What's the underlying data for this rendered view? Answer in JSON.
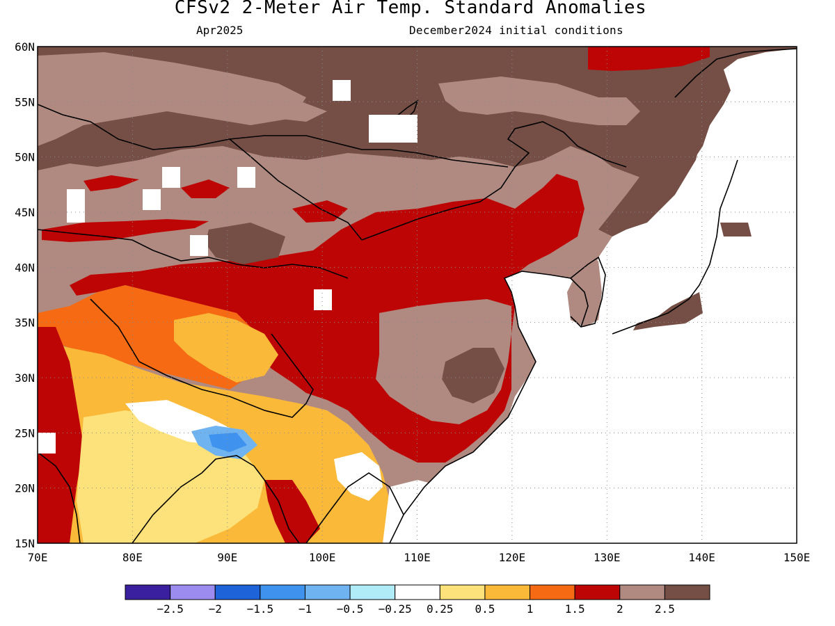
{
  "title": "CFSv2 2-Meter Air Temp. Standard Anomalies",
  "target_month": "Apr2025",
  "initial_conditions": "December2024 initial conditions",
  "map": {
    "lat_ticks": [
      "15N",
      "20N",
      "25N",
      "30N",
      "35N",
      "40N",
      "45N",
      "50N",
      "55N",
      "60N"
    ],
    "lon_ticks": [
      "70E",
      "80E",
      "90E",
      "100E",
      "110E",
      "120E",
      "130E",
      "140E",
      "150E"
    ],
    "lat_range": [
      15,
      60
    ],
    "lon_range": [
      70,
      150
    ],
    "grid": "dotted"
  },
  "legend": {
    "colors": [
      "#3a1f9e",
      "#9d8cf0",
      "#1f63d8",
      "#3f93ee",
      "#6fb4f0",
      "#b0ecf8",
      "#ffffff",
      "#fde17a",
      "#fbb93a",
      "#f56a12",
      "#bd0505",
      "#b08a80",
      "#754f45"
    ],
    "labels": [
      "-2.5",
      "-2",
      "-1.5",
      "-1",
      "-0.5",
      "-0.25",
      "0.25",
      "0.5",
      "1",
      "1.5",
      "2",
      "2.5"
    ]
  }
}
